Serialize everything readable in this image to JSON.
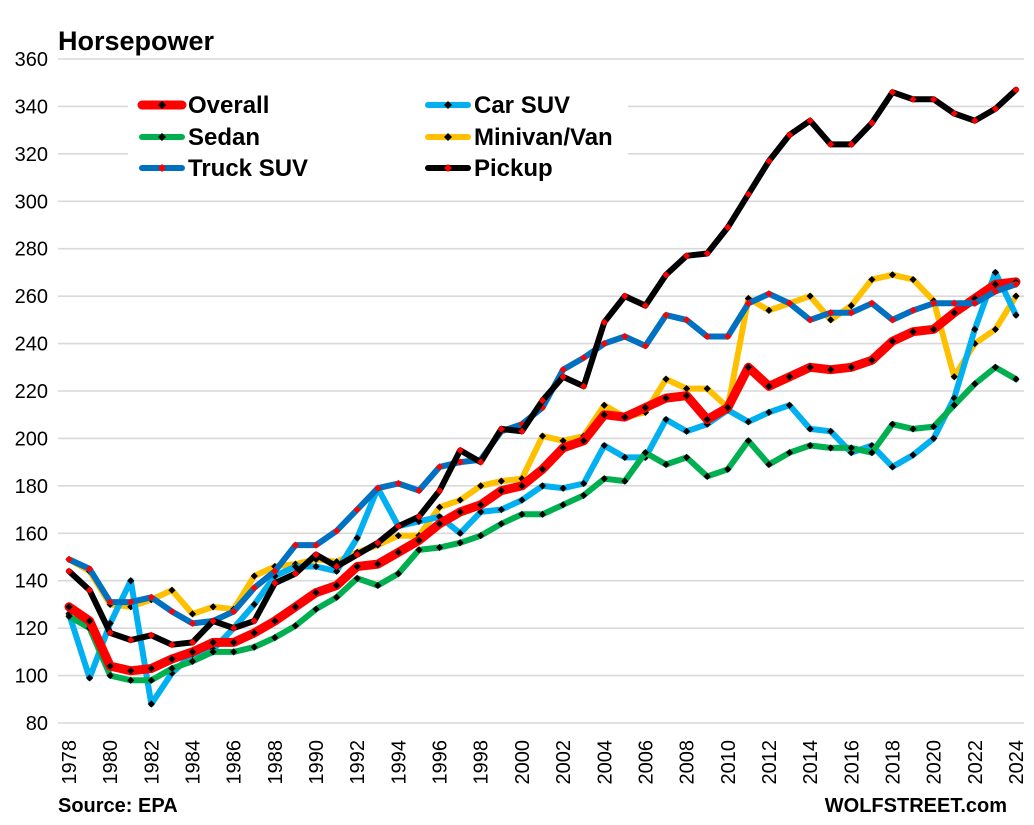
{
  "chart_data": {
    "type": "line",
    "title": "Horsepower",
    "xlabel": "",
    "ylabel": "",
    "ylim": [
      80,
      360
    ],
    "yticks": [
      80,
      100,
      120,
      140,
      160,
      180,
      200,
      220,
      240,
      260,
      280,
      300,
      320,
      340,
      360
    ],
    "xlim": [
      1978,
      2024
    ],
    "xtick_labels": [
      "1978",
      "1980",
      "1982",
      "1984",
      "1986",
      "1988",
      "1990",
      "1992",
      "1994",
      "1996",
      "1998",
      "2000",
      "2002",
      "2004",
      "2006",
      "2008",
      "2010",
      "2012",
      "2014",
      "2016",
      "2018",
      "2020",
      "2022",
      "2024"
    ],
    "grid": "horizontal",
    "legend_position": "top-left",
    "x": [
      1978,
      1979,
      1980,
      1981,
      1982,
      1983,
      1984,
      1985,
      1986,
      1987,
      1988,
      1989,
      1990,
      1991,
      1992,
      1993,
      1994,
      1995,
      1996,
      1997,
      1998,
      1999,
      2000,
      2001,
      2002,
      2003,
      2004,
      2005,
      2006,
      2007,
      2008,
      2009,
      2010,
      2011,
      2012,
      2013,
      2014,
      2015,
      2016,
      2017,
      2018,
      2019,
      2020,
      2021,
      2022,
      2023,
      2024
    ],
    "series": [
      {
        "name": "Overall",
        "color": "#FF0000",
        "marker_color": "#000000",
        "width": "thick",
        "values": [
          129,
          123,
          104,
          102,
          103,
          107,
          110,
          114,
          114,
          118,
          123,
          129,
          135,
          138,
          146,
          147,
          152,
          157,
          164,
          169,
          172,
          178,
          180,
          187,
          196,
          199,
          210,
          209,
          213,
          217,
          218,
          208,
          213,
          230,
          222,
          226,
          230,
          229,
          230,
          233,
          241,
          245,
          246,
          253,
          259,
          265,
          266
        ]
      },
      {
        "name": "Sedan",
        "color": "#00B050",
        "marker_color": "#000000",
        "width": "normal",
        "values": [
          125,
          120,
          100,
          98,
          98,
          103,
          106,
          110,
          110,
          112,
          116,
          121,
          128,
          133,
          141,
          138,
          143,
          153,
          154,
          156,
          159,
          164,
          168,
          168,
          172,
          176,
          183,
          182,
          194,
          189,
          192,
          184,
          187,
          199,
          189,
          194,
          197,
          196,
          196,
          194,
          206,
          204,
          205,
          214,
          223,
          230,
          225
        ]
      },
      {
        "name": "Truck SUV",
        "color": "#0070C0",
        "marker_color": "#FF0000",
        "width": "normal",
        "values": [
          149,
          145,
          131,
          131,
          133,
          127,
          122,
          123,
          127,
          137,
          144,
          155,
          155,
          161,
          170,
          179,
          181,
          178,
          188,
          190,
          191,
          203,
          206,
          213,
          229,
          234,
          240,
          243,
          239,
          252,
          250,
          243,
          243,
          257,
          261,
          257,
          250,
          253,
          253,
          257,
          250,
          254,
          257,
          257,
          257,
          262,
          265
        ]
      },
      {
        "name": "Car SUV",
        "color": "#00B0F0",
        "marker_color": "#000000",
        "width": "normal",
        "values": [
          126,
          99,
          122,
          140,
          88,
          101,
          109,
          111,
          120,
          130,
          142,
          146,
          146,
          144,
          158,
          179,
          163,
          165,
          167,
          160,
          169,
          170,
          174,
          180,
          179,
          181,
          197,
          192,
          192,
          208,
          203,
          206,
          212,
          207,
          211,
          214,
          204,
          203,
          194,
          197,
          188,
          193,
          200,
          217,
          246,
          270,
          252
        ]
      },
      {
        "name": "Minivan/Van",
        "color": "#FFC000",
        "marker_color": "#000000",
        "width": "normal",
        "values": [
          149,
          144,
          130,
          129,
          132,
          136,
          126,
          129,
          128,
          142,
          146,
          147,
          149,
          148,
          152,
          155,
          159,
          159,
          171,
          174,
          180,
          182,
          183,
          201,
          199,
          201,
          214,
          209,
          211,
          225,
          221,
          221,
          213,
          259,
          254,
          257,
          260,
          250,
          256,
          267,
          269,
          267,
          258,
          226,
          240,
          246,
          260
        ]
      },
      {
        "name": "Pickup",
        "color": "#000000",
        "marker_color": "#FF0000",
        "width": "normal",
        "values": [
          144,
          136,
          118,
          115,
          117,
          113,
          114,
          123,
          120,
          123,
          139,
          143,
          151,
          146,
          151,
          156,
          163,
          167,
          178,
          195,
          190,
          204,
          203,
          216,
          226,
          222,
          249,
          260,
          256,
          269,
          277,
          278,
          289,
          303,
          317,
          328,
          334,
          324,
          324,
          333,
          346,
          343,
          343,
          337,
          334,
          339,
          347
        ]
      }
    ],
    "legend_order": [
      "Overall",
      "Car SUV",
      "Sedan",
      "Minivan/Van",
      "Truck SUV",
      "Pickup"
    ],
    "annotations": {
      "source": "Source: EPA",
      "credit": "WOLFSTREET.com"
    }
  }
}
